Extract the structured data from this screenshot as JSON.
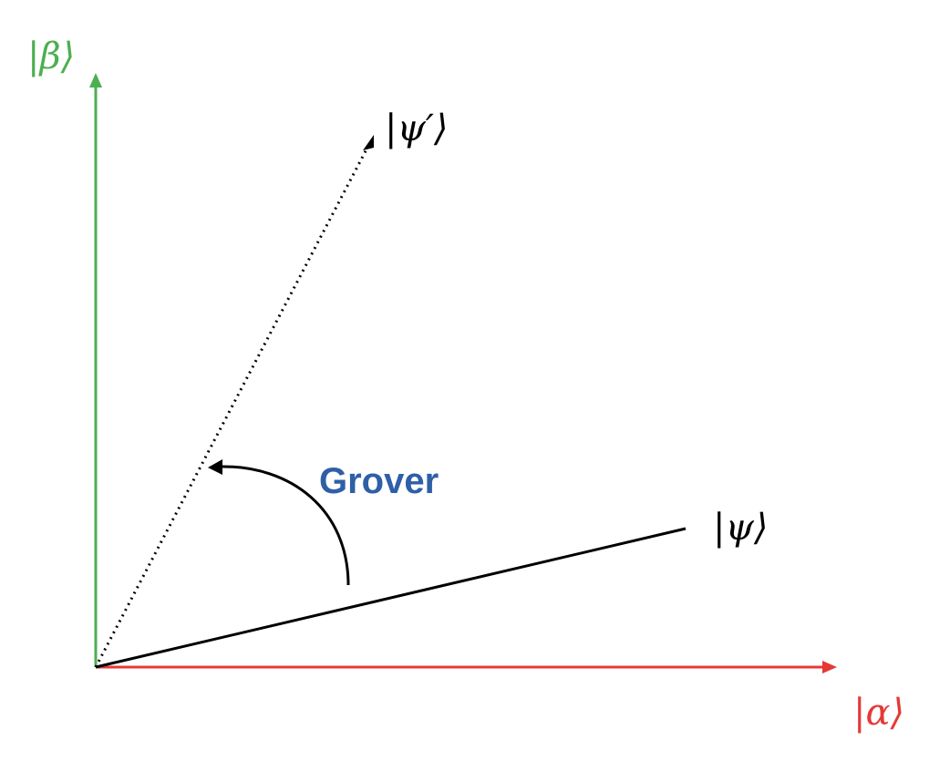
{
  "labels": {
    "beta_ket": "|β⟩",
    "alpha_ket": "|α⟩",
    "psi_ket": "|ψ⟩",
    "psi_prime_ket": "|ψ′⟩",
    "operator": "Grover"
  },
  "colors": {
    "beta_axis": "#4CAF50",
    "alpha_axis": "#E53935",
    "vectors": "#000000",
    "operator_label": "#2E5FA8"
  }
}
